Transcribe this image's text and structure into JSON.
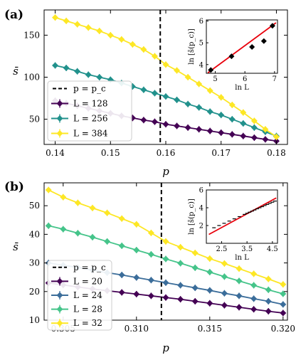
{
  "chart_data": [
    {
      "panel_label": "(a)",
      "type": "line",
      "xlabel": "p",
      "ylabel": "s̄",
      "xlim": [
        0.138,
        0.182
      ],
      "ylim": [
        20,
        180
      ],
      "xticks": [
        0.14,
        0.15,
        0.16,
        0.17,
        0.18
      ],
      "xtick_labels": [
        "0.14",
        "0.15",
        "0.16",
        "0.17",
        "0.18"
      ],
      "yticks": [
        50,
        100,
        150
      ],
      "ytick_labels": [
        "50",
        "100",
        "150"
      ],
      "vline": {
        "x": 0.159,
        "label": "p = p_c"
      },
      "legend": [
        "p = p_c",
        "L = 128",
        "L = 256",
        "L = 384"
      ],
      "legend_position": "lower-left",
      "series": [
        {
          "name": "L = 128",
          "color": "#440154",
          "x": [
            0.14,
            0.142,
            0.144,
            0.146,
            0.148,
            0.15,
            0.152,
            0.154,
            0.156,
            0.158,
            0.16,
            0.162,
            0.164,
            0.166,
            0.168,
            0.17,
            0.172,
            0.174,
            0.176,
            0.178,
            0.18
          ],
          "values": [
            72,
            69,
            66,
            63,
            60,
            57,
            54,
            51.5,
            49,
            47,
            44,
            42,
            40,
            38,
            36,
            34,
            32,
            30,
            28,
            26,
            24
          ]
        },
        {
          "name": "L = 256",
          "color": "#21918c",
          "x": [
            0.14,
            0.142,
            0.144,
            0.146,
            0.148,
            0.15,
            0.152,
            0.154,
            0.156,
            0.158,
            0.16,
            0.162,
            0.164,
            0.166,
            0.168,
            0.17,
            0.172,
            0.174,
            0.176,
            0.178,
            0.18
          ],
          "values": [
            114,
            111,
            107,
            103,
            100,
            97,
            93,
            89,
            85,
            81,
            77,
            73,
            68,
            64,
            59,
            55,
            50,
            45,
            40,
            35,
            30
          ]
        },
        {
          "name": "L = 384",
          "color": "#fde725",
          "x": [
            0.14,
            0.142,
            0.144,
            0.146,
            0.148,
            0.15,
            0.152,
            0.154,
            0.156,
            0.158,
            0.16,
            0.162,
            0.164,
            0.166,
            0.168,
            0.17,
            0.172,
            0.174,
            0.176,
            0.178,
            0.18
          ],
          "values": [
            171,
            167,
            163,
            159,
            155,
            150,
            145,
            139,
            133,
            125,
            115,
            108,
            100,
            92,
            84,
            76,
            67,
            58,
            48,
            38,
            29
          ]
        }
      ],
      "inset": {
        "type": "scatter",
        "xlabel": "ln L",
        "ylabel": "ln [s̄(p_c)]",
        "xlim": [
          4.7,
          7.1
        ],
        "ylim": [
          3.6,
          6.05
        ],
        "xticks": [
          5,
          6,
          7
        ],
        "yticks": [
          4,
          5,
          6
        ],
        "points": {
          "x": [
            4.85,
            5.55,
            6.24,
            6.64,
            6.93
          ],
          "y": [
            3.75,
            4.38,
            4.81,
            5.08,
            5.78
          ]
        },
        "fit": {
          "x": [
            4.75,
            7.05
          ],
          "y": [
            3.62,
            5.92
          ]
        }
      }
    },
    {
      "panel_label": "(b)",
      "type": "line",
      "xlabel": "p",
      "ylabel": "s̄",
      "xlim": [
        0.3037,
        0.3203
      ],
      "ylim": [
        10,
        58
      ],
      "xticks": [
        0.305,
        0.31,
        0.315,
        0.32
      ],
      "xtick_labels": [
        "0.305",
        "0.310",
        "0.315",
        "0.320"
      ],
      "yticks": [
        10,
        20,
        30,
        40,
        50
      ],
      "ytick_labels": [
        "10",
        "20",
        "30",
        "40",
        "50"
      ],
      "vline": {
        "x": 0.3117,
        "label": "p = p_c"
      },
      "legend": [
        "p = p_c",
        "L = 20",
        "L = 24",
        "L = 28",
        "L = 32"
      ],
      "legend_position": "lower-left",
      "series": [
        {
          "name": "L = 20",
          "color": "#440154",
          "x": [
            0.304,
            0.305,
            0.306,
            0.307,
            0.308,
            0.309,
            0.31,
            0.311,
            0.312,
            0.313,
            0.314,
            0.315,
            0.316,
            0.317,
            0.318,
            0.319,
            0.32
          ],
          "values": [
            23,
            22.3,
            21.6,
            20.9,
            20.3,
            19.7,
            19.1,
            18.5,
            17.9,
            17.3,
            16.6,
            15.9,
            15.2,
            14.5,
            13.8,
            13.1,
            12.5
          ]
        },
        {
          "name": "L = 24",
          "color": "#3b6d9a",
          "x": [
            0.304,
            0.305,
            0.306,
            0.307,
            0.308,
            0.309,
            0.31,
            0.311,
            0.312,
            0.313,
            0.314,
            0.315,
            0.316,
            0.317,
            0.318,
            0.319,
            0.32
          ],
          "values": [
            30,
            29.2,
            28.4,
            27.5,
            26.6,
            25.8,
            24.9,
            24,
            23.1,
            22.2,
            21.3,
            20.4,
            19.4,
            18.5,
            17.5,
            16.6,
            15.5
          ]
        },
        {
          "name": "L = 28",
          "color": "#45c48a",
          "x": [
            0.304,
            0.305,
            0.306,
            0.307,
            0.308,
            0.309,
            0.31,
            0.311,
            0.312,
            0.313,
            0.314,
            0.315,
            0.316,
            0.317,
            0.318,
            0.319,
            0.32
          ],
          "values": [
            43,
            41.8,
            40.4,
            39,
            37.5,
            36,
            34.5,
            33,
            31.4,
            29.9,
            28.3,
            26.8,
            25.2,
            23.7,
            22.2,
            20.6,
            19.2
          ]
        },
        {
          "name": "L = 32",
          "color": "#fde725",
          "x": [
            0.304,
            0.305,
            0.306,
            0.307,
            0.308,
            0.309,
            0.31,
            0.311,
            0.312,
            0.313,
            0.314,
            0.315,
            0.316,
            0.317,
            0.318,
            0.319,
            0.32
          ],
          "values": [
            55.5,
            53,
            51,
            49.2,
            47.5,
            45.5,
            43.5,
            40.5,
            37.5,
            35.5,
            33.5,
            31.5,
            29.8,
            28,
            26.2,
            24.4,
            22.5
          ]
        }
      ],
      "inset": {
        "type": "scatter",
        "xlabel": "ln L",
        "ylabel": "ln [s̄(p_c)]",
        "xlim": [
          1.9,
          4.7
        ],
        "ylim": [
          0,
          6
        ],
        "xticks": [
          2.5,
          3.5,
          4.5
        ],
        "yticks": [
          2,
          4,
          6
        ],
        "points": {
          "x": [
            2.2,
            2.4,
            2.6,
            2.8,
            3.0,
            3.2,
            3.4,
            3.5,
            3.6,
            3.7,
            3.8,
            3.9,
            4.0,
            4.1,
            4.2,
            4.3,
            4.4,
            4.5,
            4.6
          ],
          "y": [
            1.75,
            2.0,
            2.25,
            2.5,
            2.75,
            3.0,
            3.25,
            3.38,
            3.5,
            3.62,
            3.75,
            3.88,
            4.0,
            4.12,
            4.25,
            4.37,
            4.5,
            4.62,
            4.75
          ]
        },
        "fit": {
          "x": [
            2.0,
            4.65
          ],
          "y": [
            1.0,
            5.1
          ]
        }
      }
    }
  ]
}
